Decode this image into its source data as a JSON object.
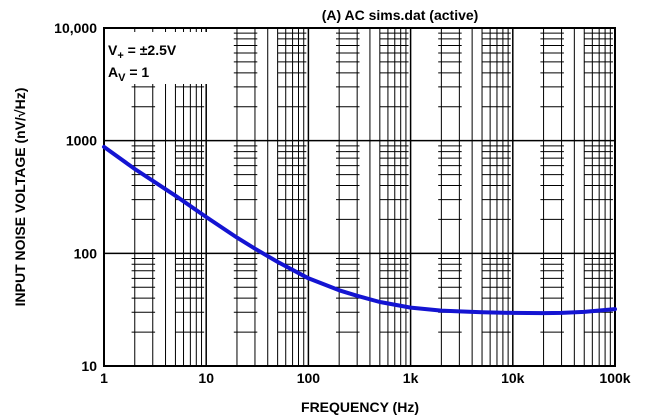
{
  "chart_data": {
    "type": "line",
    "title": "(A) AC sims.dat (active)",
    "xlabel": "FREQUENCY (Hz)",
    "ylabel": "INPUT NOISE VOLTAGE (nV/√Hz)",
    "x_scale": "log",
    "y_scale": "log",
    "xlim": [
      1,
      100000
    ],
    "ylim": [
      10,
      10000
    ],
    "x_ticks": [
      {
        "value": 1,
        "label": "1"
      },
      {
        "value": 10,
        "label": "10"
      },
      {
        "value": 100,
        "label": "100"
      },
      {
        "value": 1000,
        "label": "1k"
      },
      {
        "value": 10000,
        "label": "10k"
      },
      {
        "value": 100000,
        "label": "100k"
      }
    ],
    "y_ticks": [
      {
        "value": 10,
        "label": "10"
      },
      {
        "value": 100,
        "label": "100"
      },
      {
        "value": 1000,
        "label": "1000"
      },
      {
        "value": 10000,
        "label": "10,000"
      }
    ],
    "grid": true,
    "minor_grid": true,
    "annotations": {
      "supply": {
        "prefix": "V",
        "sub": "+",
        "rest": " = ±2.5V"
      },
      "gain": {
        "prefix": "A",
        "sub": "V",
        "rest": " = 1"
      }
    },
    "series": [
      {
        "color": "#1414d2",
        "x": [
          1,
          2,
          3,
          5,
          10,
          20,
          30,
          50,
          100,
          200,
          300,
          500,
          1000,
          2000,
          3000,
          5000,
          10000,
          20000,
          30000,
          50000,
          100000
        ],
        "y": [
          880,
          560,
          440,
          325,
          210,
          138,
          110,
          84,
          60,
          47,
          42,
          37,
          33,
          31,
          30.5,
          30,
          29.6,
          29.5,
          29.6,
          30.2,
          32
        ]
      }
    ]
  }
}
